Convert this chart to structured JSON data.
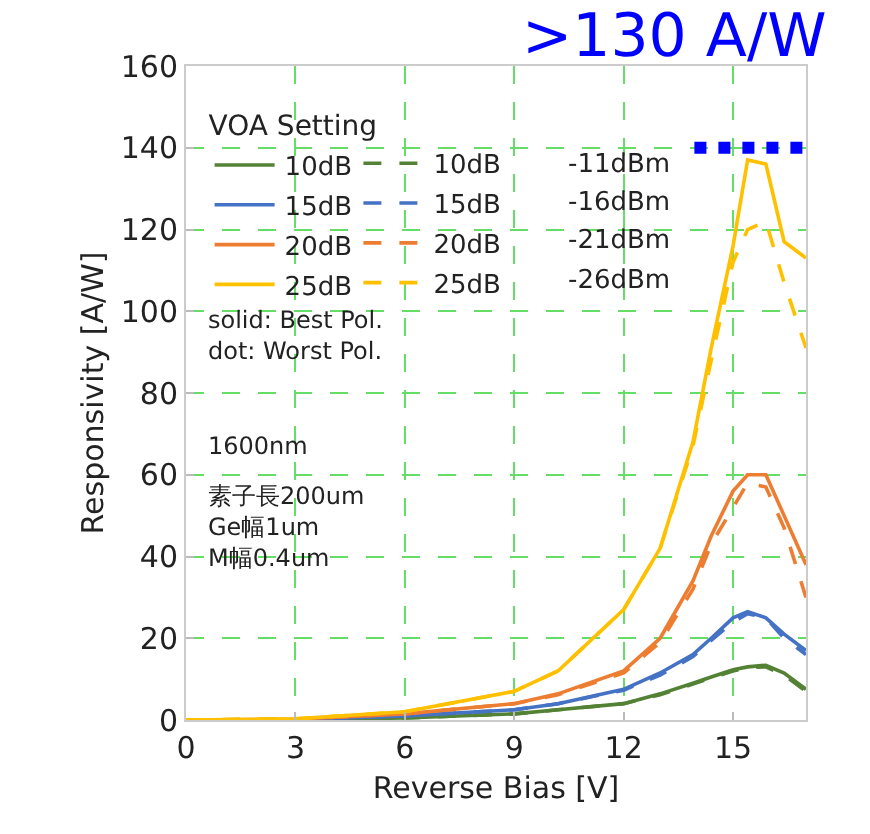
{
  "chart_data": {
    "type": "line",
    "xlabel": "Reverse Bias [V]",
    "ylabel": "Responsivity [A/W]",
    "legend_title": "VOA Setting",
    "x": [
      0,
      3,
      6,
      9,
      10.2,
      12,
      13,
      13.9,
      14.4,
      15,
      15.4,
      15.9,
      16.4,
      17
    ],
    "series": [
      {
        "name": "10dB",
        "color": "#548235",
        "line_style": "solid",
        "values": [
          0,
          0.1,
          0.5,
          1.5,
          2.5,
          4,
          6.4,
          9,
          10.5,
          12.3,
          13,
          13.4,
          11.5,
          7.5
        ]
      },
      {
        "name": "10dB",
        "color": "#548235",
        "line_style": "dashed",
        "values": [
          0,
          0.1,
          0.5,
          1.5,
          2.5,
          4,
          6.2,
          8.8,
          10.3,
          12,
          12.8,
          13,
          11,
          7
        ]
      },
      {
        "name": "15dB",
        "color": "#4472c4",
        "line_style": "solid",
        "values": [
          0,
          0.1,
          1,
          2.5,
          4,
          7.5,
          11.5,
          16,
          20,
          25,
          26.5,
          25,
          21,
          17
        ]
      },
      {
        "name": "15dB",
        "color": "#4472c4",
        "line_style": "dashed",
        "values": [
          0,
          0.1,
          1,
          2.5,
          4,
          7.3,
          11,
          15.5,
          19.5,
          24,
          26,
          25,
          20,
          16
        ]
      },
      {
        "name": "20dB",
        "color": "#ed7d31",
        "line_style": "solid",
        "values": [
          0,
          0.2,
          1.5,
          4,
          6.4,
          12,
          20,
          34,
          45,
          56,
          60,
          60,
          50,
          38
        ]
      },
      {
        "name": "20dB",
        "color": "#ed7d31",
        "line_style": "dashed",
        "values": [
          0,
          0.2,
          1.5,
          4,
          6.2,
          11.5,
          19,
          32,
          43,
          52,
          58,
          57,
          47,
          30
        ]
      },
      {
        "name": "25dB",
        "color": "#ffc000",
        "line_style": "solid",
        "values": [
          0,
          0.3,
          2,
          7,
          12,
          27,
          42,
          68,
          91,
          116,
          137,
          136,
          117,
          113
        ]
      },
      {
        "name": "25dB",
        "color": "#ffc000",
        "line_style": "dashed",
        "values": [
          0,
          0.3,
          2,
          7,
          12,
          27,
          42,
          67,
          88,
          112,
          120,
          122,
          107,
          91
        ]
      }
    ],
    "xlim": [
      0,
      17
    ],
    "xticks": [
      0,
      3,
      6,
      9,
      12,
      15
    ],
    "ylim": [
      0,
      160
    ],
    "yticks": [
      0,
      20,
      40,
      60,
      80,
      100,
      120,
      140,
      160
    ],
    "grid": true,
    "legend": "top left",
    "ref_lines": [
      {
        "axis": "y",
        "value": 140,
        "label": ">130 A/W",
        "color": "#0000ff",
        "line_style": "dotted"
      }
    ],
    "annotations": [
      "-11dBm",
      "-16dBm",
      "-21dBm",
      "-26dBm",
      "solid: Best Pol.\ndot: Worst Pol.",
      "1600nm",
      "素子長200um\nGe幅1um\nM幅0.4um"
    ]
  }
}
